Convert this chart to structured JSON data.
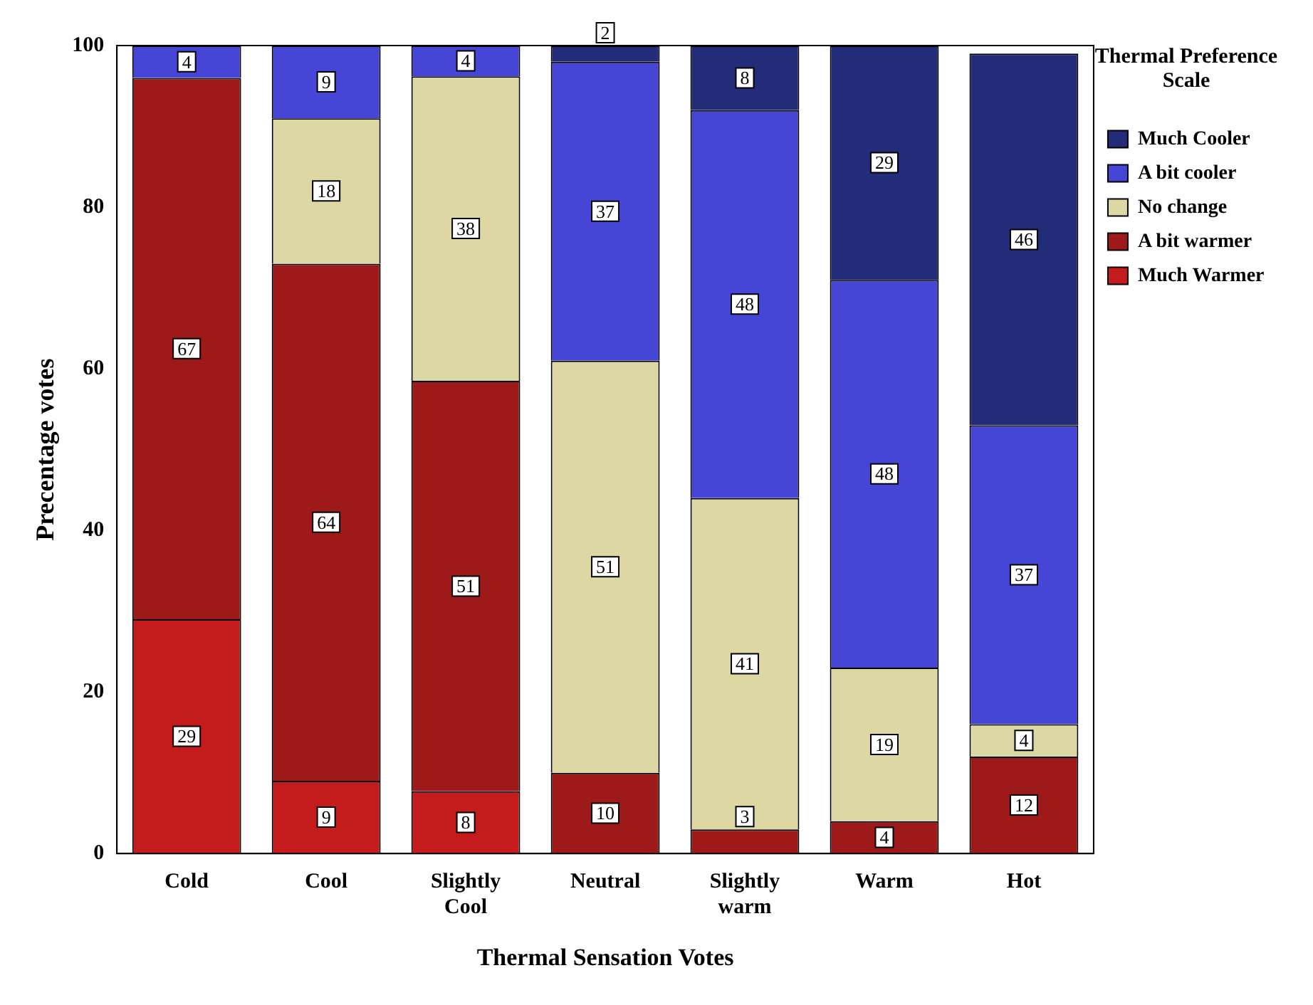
{
  "chart_data": {
    "type": "bar",
    "stacked": true,
    "xlabel": "Thermal Sensation Votes",
    "ylabel": "Precentage votes",
    "legend_title": "Thermal Preference Scale",
    "legend": "top right",
    "grid": false,
    "categories": [
      "Cold",
      "Cool",
      "Slightly Cool",
      "Neutral",
      "Slightly warm",
      "Warm",
      "Hot"
    ],
    "ylim": [
      0,
      100
    ],
    "yticks": [
      0,
      20,
      40,
      60,
      80,
      100
    ],
    "series": [
      {
        "name": "Much Warmer",
        "color": "#c41c1c",
        "values": [
          29,
          9,
          7.7,
          null,
          null,
          null,
          null
        ],
        "value_labels": [
          "29",
          "9",
          "8",
          null,
          null,
          null,
          null
        ]
      },
      {
        "name": "A bit warmer",
        "color": "#9e1a1a",
        "values": [
          67,
          64,
          50.8,
          10,
          3,
          4,
          12
        ],
        "value_labels": [
          "67",
          "64",
          "51",
          "10",
          "3",
          "4",
          "12"
        ]
      },
      {
        "name": "No change",
        "color": "#ddd7a3",
        "values": [
          null,
          18,
          37.7,
          51,
          41,
          19,
          4
        ],
        "value_labels": [
          null,
          "18",
          "38",
          "51",
          "41",
          "19",
          "4"
        ]
      },
      {
        "name": "A bit cooler",
        "color": "#4545d6",
        "values": [
          4,
          9,
          3.8,
          37,
          48,
          48,
          37
        ],
        "value_labels": [
          "4",
          "9",
          "4",
          "37",
          "48",
          "48",
          "37"
        ]
      },
      {
        "name": "Much Cooler",
        "color": "#232c78",
        "values": [
          null,
          null,
          null,
          2,
          8,
          29,
          46
        ],
        "value_labels": [
          null,
          null,
          null,
          "2",
          "8",
          "29",
          "46"
        ]
      }
    ]
  }
}
